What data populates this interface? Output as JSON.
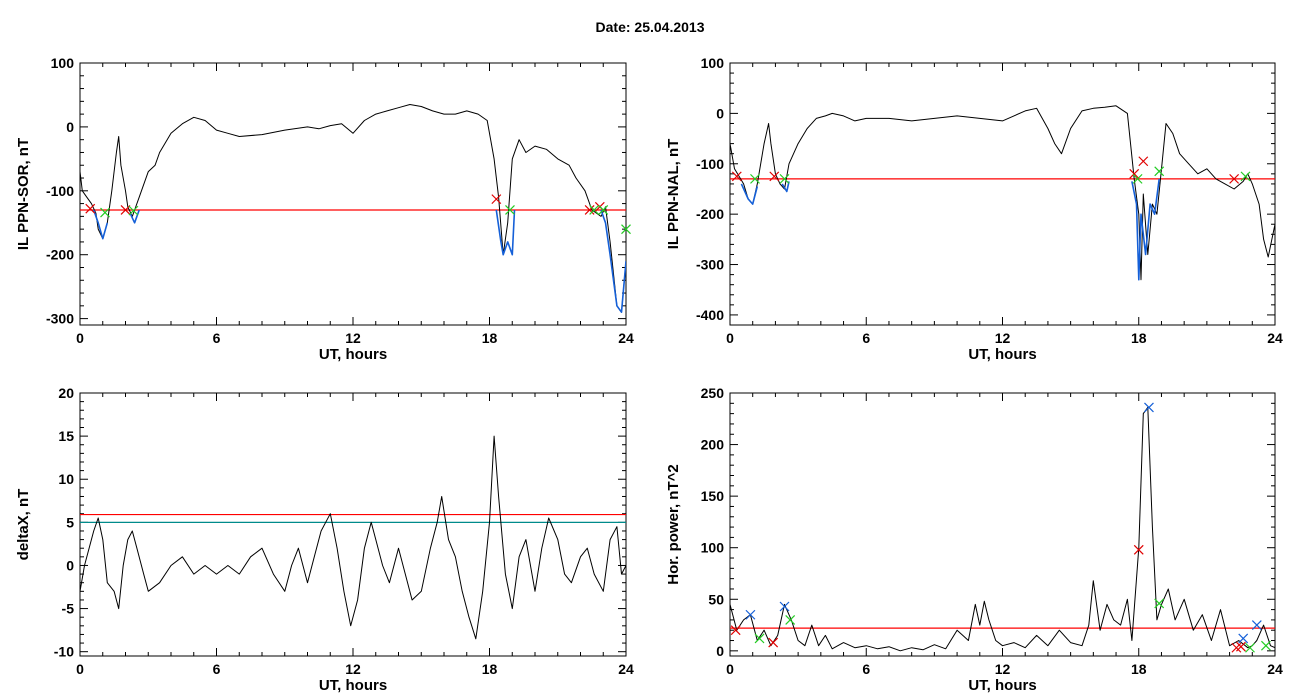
{
  "page_title": "Date:  25.04.2013",
  "colors": {
    "trace": "#000000",
    "threshold_red": "#ff0000",
    "threshold_teal": "#008b8b",
    "highlight_blue": "#1560d8",
    "marker_red": "#e00000",
    "marker_green": "#22cc22",
    "marker_blue": "#1560d8"
  },
  "chart_data": [
    {
      "id": "panel-top-left",
      "type": "line",
      "title": "",
      "xlabel": "UT, hours",
      "ylabel": "IL PPN-SOR, nT",
      "xlim": [
        0,
        24
      ],
      "ylim": [
        -310,
        100
      ],
      "xticks": [
        0,
        6,
        12,
        18,
        24
      ],
      "yticks": [
        100,
        0,
        -100,
        -200,
        -300
      ],
      "grid": false,
      "thresholds": [
        {
          "y": -130,
          "color": "red"
        }
      ],
      "series": [
        {
          "color": "black",
          "x": [
            0,
            0.1,
            0.3,
            0.5,
            0.7,
            0.8,
            1.0,
            1.2,
            1.4,
            1.6,
            1.7,
            1.8,
            2.0,
            2.1,
            2.3,
            2.4,
            2.6,
            3.0,
            3.3,
            3.5,
            4.0,
            4.5,
            5.0,
            5.5,
            6.0,
            6.5,
            7.0,
            8.0,
            9.0,
            10.0,
            10.5,
            11.0,
            11.5,
            12.0,
            12.5,
            13.0,
            13.5,
            14.0,
            14.5,
            15.0,
            15.5,
            16.0,
            16.5,
            17.0,
            17.5,
            17.9,
            18.2,
            18.4,
            18.6,
            18.8,
            19.0,
            19.3,
            19.6,
            20.0,
            20.5,
            21.0,
            21.5,
            21.8,
            22.2,
            22.5,
            22.9,
            23.1,
            23.3,
            23.6,
            23.8,
            24.0
          ],
          "y": [
            -70,
            -100,
            -110,
            -120,
            -135,
            -160,
            -175,
            -150,
            -100,
            -40,
            -15,
            -60,
            -100,
            -125,
            -140,
            -130,
            -110,
            -70,
            -60,
            -40,
            -10,
            5,
            15,
            10,
            -5,
            -10,
            -15,
            -12,
            -5,
            0,
            -3,
            2,
            5,
            -10,
            10,
            20,
            25,
            30,
            35,
            32,
            25,
            20,
            20,
            25,
            20,
            10,
            -50,
            -110,
            -200,
            -150,
            -50,
            -20,
            -40,
            -30,
            -35,
            -50,
            -60,
            -80,
            -100,
            -130,
            -140,
            -125,
            -180,
            -280,
            -290,
            -210
          ]
        },
        {
          "color": "blue",
          "x": [
            0.6,
            0.8,
            1.0,
            1.2
          ],
          "y": [
            -130,
            -150,
            -175,
            -150
          ]
        },
        {
          "color": "blue",
          "x": [
            2.2,
            2.4,
            2.6
          ],
          "y": [
            -135,
            -150,
            -130
          ]
        },
        {
          "color": "blue",
          "x": [
            18.3,
            18.5,
            18.6,
            18.8,
            19.0,
            19.1
          ],
          "y": [
            -130,
            -180,
            -200,
            -180,
            -200,
            -130
          ]
        },
        {
          "color": "blue",
          "x": [
            22.9,
            23.1,
            23.3,
            23.6,
            23.8,
            24.0
          ],
          "y": [
            -130,
            -150,
            -200,
            -280,
            -290,
            -210
          ]
        }
      ],
      "markers": [
        {
          "x": 0.45,
          "y": -128,
          "color": "red"
        },
        {
          "x": 1.1,
          "y": -134,
          "color": "green"
        },
        {
          "x": 2.0,
          "y": -130,
          "color": "red"
        },
        {
          "x": 2.35,
          "y": -131,
          "color": "green"
        },
        {
          "x": 18.3,
          "y": -113,
          "color": "red"
        },
        {
          "x": 18.9,
          "y": -130,
          "color": "green"
        },
        {
          "x": 22.4,
          "y": -130,
          "color": "red"
        },
        {
          "x": 22.6,
          "y": -130,
          "color": "green"
        },
        {
          "x": 22.85,
          "y": -125,
          "color": "red"
        },
        {
          "x": 23.0,
          "y": -130,
          "color": "green"
        },
        {
          "x": 24.0,
          "y": -160,
          "color": "green"
        }
      ]
    },
    {
      "id": "panel-top-right",
      "type": "line",
      "title": "",
      "xlabel": "UT, hours",
      "ylabel": "IL PPN-NAL, nT",
      "xlim": [
        0,
        24
      ],
      "ylim": [
        -420,
        100
      ],
      "xticks": [
        0,
        6,
        12,
        18,
        24
      ],
      "yticks": [
        100,
        0,
        -100,
        -200,
        -300,
        -400
      ],
      "grid": false,
      "thresholds": [
        {
          "y": -130,
          "color": "red"
        }
      ],
      "series": [
        {
          "color": "black",
          "x": [
            0,
            0.2,
            0.4,
            0.6,
            0.8,
            1.0,
            1.2,
            1.5,
            1.7,
            1.8,
            2.0,
            2.2,
            2.4,
            2.6,
            3.0,
            3.4,
            3.8,
            4.2,
            4.5,
            5.0,
            5.5,
            6.0,
            7.0,
            8.0,
            9.0,
            10.0,
            11.0,
            12.0,
            12.5,
            13.0,
            13.5,
            14.0,
            14.3,
            14.6,
            15.0,
            15.5,
            16.0,
            16.5,
            17.0,
            17.5,
            17.8,
            18.0,
            18.1,
            18.2,
            18.4,
            18.6,
            18.8,
            19.0,
            19.2,
            19.5,
            19.8,
            20.2,
            20.6,
            21.0,
            21.4,
            21.8,
            22.2,
            22.6,
            22.8,
            23.0,
            23.3,
            23.5,
            23.7,
            24.0
          ],
          "y": [
            -60,
            -110,
            -125,
            -140,
            -170,
            -180,
            -140,
            -60,
            -20,
            -60,
            -120,
            -140,
            -150,
            -100,
            -60,
            -30,
            -10,
            -5,
            0,
            -5,
            -15,
            -10,
            -10,
            -15,
            -10,
            -5,
            -10,
            -15,
            -5,
            5,
            10,
            -30,
            -60,
            -80,
            -30,
            5,
            10,
            12,
            15,
            0,
            -130,
            -200,
            -330,
            -160,
            -280,
            -180,
            -200,
            -110,
            -20,
            -40,
            -80,
            -100,
            -120,
            -110,
            -130,
            -140,
            -150,
            -135,
            -120,
            -140,
            -180,
            -250,
            -285,
            -220
          ]
        },
        {
          "color": "blue",
          "x": [
            0.5,
            0.8,
            1.0,
            1.2
          ],
          "y": [
            -140,
            -170,
            -180,
            -145
          ]
        },
        {
          "color": "blue",
          "x": [
            2.3,
            2.5,
            2.6
          ],
          "y": [
            -140,
            -155,
            -135
          ]
        },
        {
          "color": "blue",
          "x": [
            17.7,
            17.9,
            18.0,
            18.1,
            18.3,
            18.5,
            18.7,
            18.9
          ],
          "y": [
            -135,
            -180,
            -330,
            -200,
            -280,
            -180,
            -200,
            -130
          ]
        }
      ],
      "markers": [
        {
          "x": 0.3,
          "y": -125,
          "color": "red"
        },
        {
          "x": 1.1,
          "y": -130,
          "color": "green"
        },
        {
          "x": 1.95,
          "y": -125,
          "color": "red"
        },
        {
          "x": 2.4,
          "y": -130,
          "color": "green"
        },
        {
          "x": 17.8,
          "y": -120,
          "color": "red"
        },
        {
          "x": 17.95,
          "y": -130,
          "color": "green"
        },
        {
          "x": 18.2,
          "y": -95,
          "color": "red"
        },
        {
          "x": 18.9,
          "y": -115,
          "color": "green"
        },
        {
          "x": 22.2,
          "y": -130,
          "color": "red"
        },
        {
          "x": 22.7,
          "y": -125,
          "color": "green"
        }
      ]
    },
    {
      "id": "panel-bottom-left",
      "type": "line",
      "title": "",
      "xlabel": "UT, hours",
      "ylabel": "deltaX, nT",
      "xlim": [
        0,
        24
      ],
      "ylim": [
        -10.5,
        20
      ],
      "xticks": [
        0,
        6,
        12,
        18,
        24
      ],
      "yticks": [
        20,
        15,
        10,
        5,
        0,
        -5,
        -10
      ],
      "grid": false,
      "thresholds": [
        {
          "y": 5.9,
          "color": "red"
        },
        {
          "y": 5.0,
          "color": "teal"
        }
      ],
      "series": [
        {
          "color": "black",
          "x": [
            0,
            0.2,
            0.4,
            0.6,
            0.8,
            1.0,
            1.2,
            1.5,
            1.7,
            1.9,
            2.1,
            2.3,
            2.5,
            2.8,
            3.0,
            3.5,
            4.0,
            4.5,
            5.0,
            5.5,
            6.0,
            6.5,
            7.0,
            7.5,
            8.0,
            8.5,
            9.0,
            9.3,
            9.6,
            10.0,
            10.3,
            10.6,
            10.8,
            11.0,
            11.3,
            11.6,
            11.9,
            12.2,
            12.5,
            12.8,
            13.0,
            13.3,
            13.6,
            14.0,
            14.3,
            14.6,
            15.0,
            15.4,
            15.7,
            15.9,
            16.2,
            16.5,
            16.8,
            17.1,
            17.4,
            17.7,
            18.0,
            18.2,
            18.4,
            18.7,
            19.0,
            19.3,
            19.6,
            20.0,
            20.3,
            20.6,
            21.0,
            21.3,
            21.6,
            22.0,
            22.3,
            22.6,
            23.0,
            23.3,
            23.6,
            23.8,
            24.0
          ],
          "y": [
            -3,
            0,
            2,
            4,
            5.5,
            3,
            -2,
            -3,
            -5,
            0,
            3,
            4,
            2,
            -1,
            -3,
            -2,
            0,
            1,
            -1,
            0,
            -1,
            0,
            -1,
            1,
            2,
            -1,
            -3,
            0,
            2,
            -2,
            1,
            4,
            5,
            6,
            2,
            -3,
            -7,
            -4,
            2,
            5,
            3,
            0,
            -2,
            2,
            -1,
            -4,
            -3,
            2,
            5,
            8,
            3,
            1,
            -3,
            -6,
            -8.5,
            -3,
            5,
            15,
            8,
            -1,
            -5,
            1,
            3,
            -3,
            2,
            5.5,
            3,
            -1,
            -2,
            1,
            2,
            -1,
            -3,
            3,
            4.5,
            -1,
            0
          ]
        }
      ],
      "markers": []
    },
    {
      "id": "panel-bottom-right",
      "type": "line",
      "title": "",
      "xlabel": "UT, hours",
      "ylabel": "Hor. power, nT^2",
      "xlim": [
        0,
        24
      ],
      "ylim": [
        -5,
        250
      ],
      "xticks": [
        0,
        6,
        12,
        18,
        24
      ],
      "yticks": [
        250,
        200,
        150,
        100,
        50,
        0
      ],
      "grid": false,
      "thresholds": [
        {
          "y": 22,
          "color": "red"
        }
      ],
      "series": [
        {
          "color": "black",
          "x": [
            0,
            0.3,
            0.6,
            0.9,
            1.2,
            1.5,
            1.8,
            2.1,
            2.4,
            2.7,
            3.0,
            3.3,
            3.6,
            3.9,
            4.2,
            4.5,
            5.0,
            5.5,
            6.0,
            6.5,
            7.0,
            7.5,
            8.0,
            8.5,
            9.0,
            9.5,
            10.0,
            10.5,
            10.8,
            11.0,
            11.2,
            11.4,
            11.7,
            12.0,
            12.5,
            13.0,
            13.5,
            14.0,
            14.5,
            15.0,
            15.5,
            15.8,
            16.0,
            16.3,
            16.6,
            16.9,
            17.2,
            17.5,
            17.7,
            18.0,
            18.2,
            18.4,
            18.6,
            18.8,
            19.0,
            19.3,
            19.6,
            20.0,
            20.4,
            20.8,
            21.2,
            21.6,
            22.0,
            22.4,
            22.8,
            23.0,
            23.2,
            23.5,
            23.8,
            24.0
          ],
          "y": [
            45,
            20,
            30,
            35,
            10,
            20,
            5,
            15,
            45,
            30,
            10,
            5,
            25,
            5,
            15,
            2,
            8,
            3,
            5,
            2,
            4,
            0,
            3,
            1,
            6,
            2,
            20,
            10,
            45,
            25,
            48,
            30,
            10,
            5,
            8,
            3,
            15,
            5,
            20,
            8,
            5,
            25,
            68,
            20,
            45,
            30,
            25,
            50,
            10,
            100,
            230,
            236,
            120,
            30,
            45,
            60,
            30,
            50,
            20,
            35,
            10,
            40,
            5,
            10,
            3,
            5,
            10,
            25,
            5,
            3
          ]
        }
      ],
      "markers": [
        {
          "x": 0.25,
          "y": 20,
          "color": "red"
        },
        {
          "x": 0.9,
          "y": 35,
          "color": "blue"
        },
        {
          "x": 1.3,
          "y": 12,
          "color": "green"
        },
        {
          "x": 1.9,
          "y": 8,
          "color": "red"
        },
        {
          "x": 2.4,
          "y": 43,
          "color": "blue"
        },
        {
          "x": 2.65,
          "y": 30,
          "color": "green"
        },
        {
          "x": 18.0,
          "y": 98,
          "color": "red"
        },
        {
          "x": 18.45,
          "y": 236,
          "color": "blue"
        },
        {
          "x": 18.9,
          "y": 46,
          "color": "green"
        },
        {
          "x": 22.3,
          "y": 3,
          "color": "red"
        },
        {
          "x": 22.5,
          "y": 4,
          "color": "red"
        },
        {
          "x": 22.6,
          "y": 12,
          "color": "blue"
        },
        {
          "x": 22.9,
          "y": 3,
          "color": "green"
        },
        {
          "x": 23.2,
          "y": 25,
          "color": "blue"
        },
        {
          "x": 23.6,
          "y": 5,
          "color": "green"
        }
      ]
    }
  ]
}
